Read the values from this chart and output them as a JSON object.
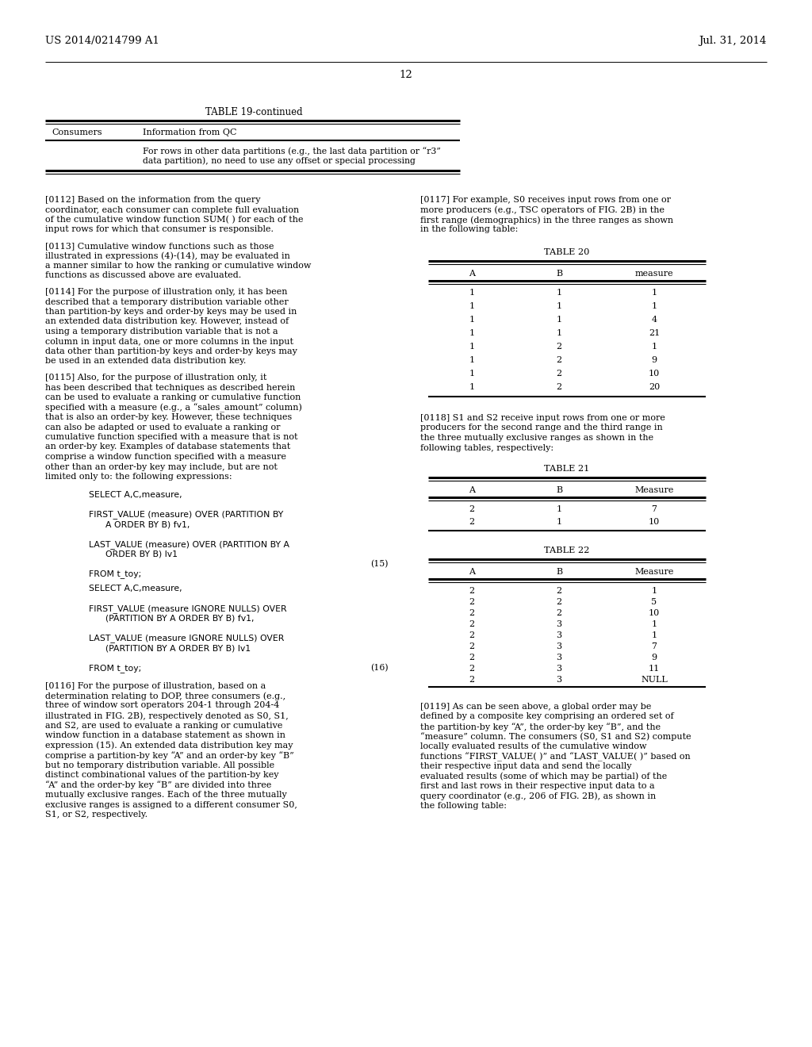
{
  "page_header_left": "US 2014/0214799 A1",
  "page_header_right": "Jul. 31, 2014",
  "page_number": "12",
  "bg_color": "#ffffff",
  "text_color": "#000000",
  "table19_title": "TABLE 19-continued",
  "table19_col1": "Consumers",
  "table19_col2": "Information from QC",
  "table19_row1_line1": "For rows in other data partitions (e.g., the last data partition or “r3”",
  "table19_row1_line2": "data partition), no need to use any offset or special processing",
  "para0112": "[0112]   Based on the information from the query coordinator, each consumer can complete full evaluation of the cumulative window function SUM( ) for each of the input rows for which that consumer is responsible.",
  "para0113": "[0113]   Cumulative window functions such as those illustrated in expressions (4)-(14), may be evaluated in a manner similar to how the ranking or cumulative window functions as discussed above are evaluated.",
  "para0114": "[0114]   For the purpose of illustration only, it has been described that a temporary distribution variable other than partition-by keys and order-by keys may be used in an extended data distribution key. However, instead of using a temporary distribution variable that is not a column in input data, one or more columns in the input data other than partition-by keys and order-by keys may be used in an extended data distribution key.",
  "para0115": "[0115]   Also, for the purpose of illustration only, it has been described that techniques as described herein can be used to evaluate a ranking or cumulative function specified with a measure (e.g., a “sales_amount” column) that is also an order-by key. However, these techniques can also be adapted or used to evaluate a ranking or cumulative function specified with a measure that is not an order-by key. Examples of database statements that comprise a window function specified with a measure other than an order-by key may include, but are not limited only to: the following expressions:",
  "code_lines_15": [
    "SELECT A,C,measure,",
    "",
    "FIRST_VALUE (measure) OVER (PARTITION BY",
    "      A ORDER BY B) fv1,",
    "",
    "LAST_VALUE (measure) OVER (PARTITION BY A",
    "      ORDER BY B) lv1",
    "",
    "FROM t_toy;"
  ],
  "code_ref_15": "(15)",
  "code_lines_16": [
    "SELECT A,C,measure,",
    "",
    "FIRST_VALUE (measure IGNORE NULLS) OVER",
    "      (PARTITION BY A ORDER BY B) fv1,",
    "",
    "LAST_VALUE (measure IGNORE NULLS) OVER",
    "      (PARTITION BY A ORDER BY B) lv1",
    "",
    "FROM t_toy;"
  ],
  "code_ref_16": "(16)",
  "para0116": "[0116]   For the purpose of illustration, based on a determination relating to DOP, three consumers (e.g., three of window sort operators 204-1 through 204-4 illustrated in FIG. 2B), respectively denoted as S0, S1, and S2, are used to evaluate a ranking or cumulative window function in a database statement as shown in expression (15). An extended data distribution key may comprise a partition-by key “A” and an order-by key “B” but no temporary distribution variable. All possible distinct combinational values of the partition-by key “A” and the order-by key “B” are divided into three mutually exclusive ranges. Each of the three mutually exclusive ranges is assigned to a different consumer S0, S1, or S2, respectively.",
  "para0117": "[0117]   For example, S0 receives input rows from one or more producers (e.g., TSC operators of FIG. 2B) in the first range (demographics) in the three ranges as shown in the following table:",
  "table20_title": "TABLE 20",
  "table20_headers": [
    "A",
    "B",
    "measure"
  ],
  "table20_data": [
    [
      "1",
      "1",
      "1"
    ],
    [
      "1",
      "1",
      "1"
    ],
    [
      "1",
      "1",
      "4"
    ],
    [
      "1",
      "1",
      "21"
    ],
    [
      "1",
      "2",
      "1"
    ],
    [
      "1",
      "2",
      "9"
    ],
    [
      "1",
      "2",
      "10"
    ],
    [
      "1",
      "2",
      "20"
    ]
  ],
  "para0118": "[0118]   S1 and S2 receive input rows from one or more producers for the second range and the third range in the three mutually exclusive ranges as shown in the following tables, respectively:",
  "table21_title": "TABLE 21",
  "table21_headers": [
    "A",
    "B",
    "Measure"
  ],
  "table21_data": [
    [
      "2",
      "1",
      "7"
    ],
    [
      "2",
      "1",
      "10"
    ]
  ],
  "table22_title": "TABLE 22",
  "table22_headers": [
    "A",
    "B",
    "Measure"
  ],
  "table22_data": [
    [
      "2",
      "2",
      "1"
    ],
    [
      "2",
      "2",
      "5"
    ],
    [
      "2",
      "2",
      "10"
    ],
    [
      "2",
      "3",
      "1"
    ],
    [
      "2",
      "3",
      "1"
    ],
    [
      "2",
      "3",
      "7"
    ],
    [
      "2",
      "3",
      "9"
    ],
    [
      "2",
      "3",
      "11"
    ],
    [
      "2",
      "3",
      "NULL"
    ]
  ],
  "para0119": "[0119]   As can be seen above, a global order may be defined by a composite key comprising an ordered set of the partition-by key “A”, the order-by key “B”, and the “measure” column. The consumers (S0, S1 and S2) compute locally evaluated results of the cumulative window functions “FIRST_VALUE( )” and “LAST_VALUE( )” based on their respective input data and send the locally evaluated results (some of which may be partial) of the first and last rows in their respective input data to a query coordinator (e.g., 206 of FIG. 2B), as shown in the following table:"
}
